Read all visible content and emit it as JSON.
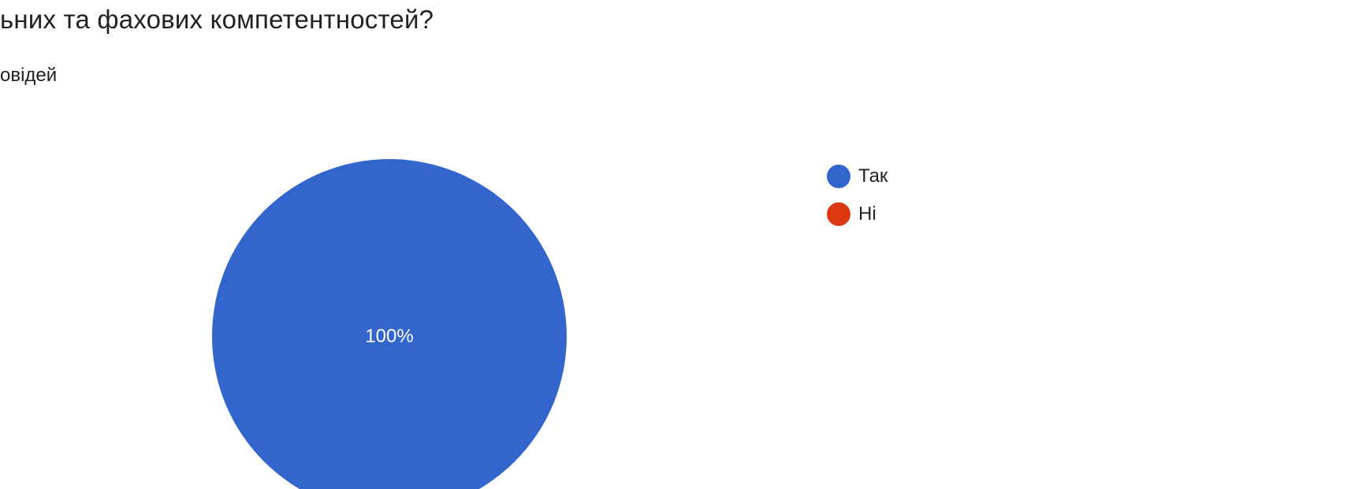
{
  "question": {
    "title": "ьних та фахових компетентностей?",
    "response_count_text": "овідей"
  },
  "chart_data": {
    "type": "pie",
    "categories": [
      "Так",
      "Ні"
    ],
    "values": [
      100,
      0
    ],
    "slice_labels": [
      "100%",
      ""
    ],
    "colors": [
      "#3366cc",
      "#dc3912"
    ],
    "legend_position": "right"
  }
}
